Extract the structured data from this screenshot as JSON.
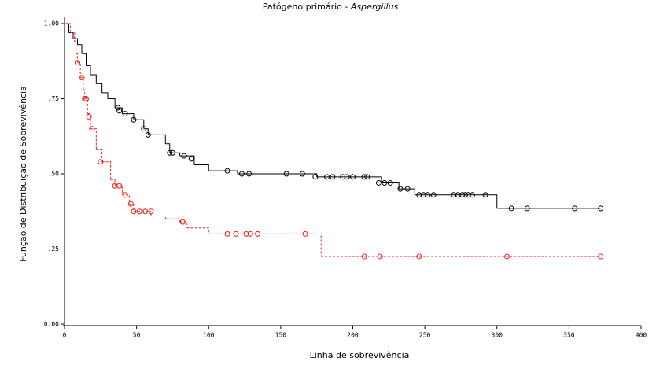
{
  "chart_data": {
    "type": "survival",
    "title": {
      "text": "Patógeno primário - ",
      "emphasis": "Aspergillus"
    },
    "x_label": "Linha de sobrevivência",
    "y_label": "Função de Distribuição de Sobrevivência",
    "xlim": [
      0,
      400
    ],
    "xticks": [
      0,
      50,
      100,
      150,
      200,
      250,
      300,
      350,
      400
    ],
    "ylim": [
      0,
      1
    ],
    "yticks": [
      {
        "value": 0,
        "label": "0.00"
      },
      {
        "value": 0.25,
        "label": ".25"
      },
      {
        "value": 0.5,
        "label": ".50"
      },
      {
        "value": 0.75,
        "label": ".75"
      },
      {
        "value": 1,
        "label": "1.00"
      }
    ],
    "series": [
      {
        "color": "#000000",
        "dashed": false,
        "times": [
          0,
          3,
          6,
          9,
          12,
          15,
          18,
          22,
          26,
          30,
          35,
          40,
          48,
          55,
          58,
          70,
          73,
          80,
          90,
          100,
          120,
          175,
          220,
          232,
          243,
          300
        ],
        "survival": [
          1.0,
          0.97,
          0.95,
          0.93,
          0.9,
          0.86,
          0.83,
          0.8,
          0.77,
          0.75,
          0.72,
          0.7,
          0.68,
          0.65,
          0.63,
          0.6,
          0.57,
          0.56,
          0.53,
          0.51,
          0.5,
          0.49,
          0.47,
          0.45,
          0.43,
          0.385
        ],
        "censored_times": [
          37,
          38,
          42,
          48,
          55,
          58,
          73,
          75,
          83,
          88,
          113,
          123,
          128,
          154,
          165,
          174,
          182,
          186,
          193,
          196,
          200,
          208,
          210,
          218,
          222,
          226,
          233,
          238,
          246,
          249,
          252,
          256,
          270,
          273,
          276,
          278,
          280,
          283,
          292,
          310,
          321,
          354,
          372
        ],
        "censored_survival": [
          0.72,
          0.71,
          0.7,
          0.68,
          0.65,
          0.63,
          0.57,
          0.57,
          0.56,
          0.55,
          0.51,
          0.5,
          0.5,
          0.5,
          0.5,
          0.49,
          0.49,
          0.49,
          0.49,
          0.49,
          0.49,
          0.49,
          0.49,
          0.47,
          0.47,
          0.47,
          0.45,
          0.45,
          0.43,
          0.43,
          0.43,
          0.43,
          0.43,
          0.43,
          0.43,
          0.43,
          0.43,
          0.43,
          0.43,
          0.385,
          0.385,
          0.385,
          0.385
        ]
      },
      {
        "color": "#e8201c",
        "dashed": true,
        "times": [
          0,
          4,
          7,
          8,
          9,
          11,
          13,
          14,
          16,
          18,
          22,
          26,
          32,
          35,
          40,
          45,
          48,
          60,
          70,
          80,
          85,
          100,
          178
        ],
        "survival": [
          1.0,
          0.97,
          0.94,
          0.9,
          0.87,
          0.82,
          0.78,
          0.75,
          0.7,
          0.65,
          0.58,
          0.54,
          0.48,
          0.46,
          0.43,
          0.4,
          0.375,
          0.36,
          0.35,
          0.34,
          0.32,
          0.3,
          0.225
        ],
        "censored_times": [
          9,
          12,
          14,
          15,
          17,
          19,
          25,
          35,
          38,
          42,
          46,
          48,
          52,
          56,
          60,
          82,
          113,
          119,
          126,
          129,
          134,
          167,
          208,
          219,
          246,
          307,
          372
        ],
        "censored_survival": [
          0.87,
          0.82,
          0.75,
          0.75,
          0.69,
          0.65,
          0.54,
          0.46,
          0.46,
          0.43,
          0.4,
          0.375,
          0.375,
          0.375,
          0.375,
          0.34,
          0.3,
          0.3,
          0.3,
          0.3,
          0.3,
          0.3,
          0.225,
          0.225,
          0.225,
          0.225,
          0.225
        ]
      }
    ]
  }
}
